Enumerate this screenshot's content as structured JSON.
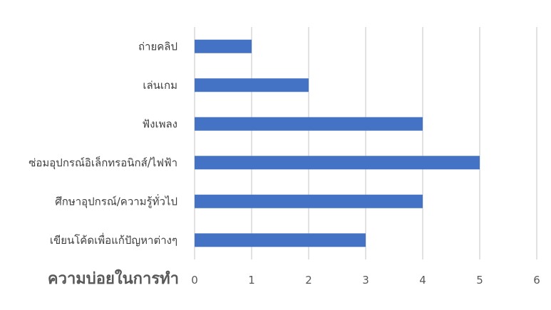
{
  "chart_data": {
    "type": "bar",
    "orientation": "horizontal",
    "categories": [
      "ถ่ายคลิป",
      "เล่นเกม",
      "ฟังเพลง",
      "ซ่อมอุปกรณ์อิเล็กทรอนิกส์/ไฟฟ้า",
      "ศึกษาอุปกรณ์/ความรู้ทั่วไป",
      "เขียนโค้ดเพื่อแก้ปัญหาต่างๆ"
    ],
    "values": [
      1,
      2,
      4,
      5,
      4,
      3
    ],
    "xlabel": "ความบ่อยในการทำ",
    "ylabel": "",
    "xlim": [
      0,
      6
    ],
    "x_ticks": [
      "0",
      "1",
      "2",
      "3",
      "4",
      "5",
      "6"
    ],
    "grid": true,
    "legend": "none",
    "bar_color": "#4472C4"
  }
}
